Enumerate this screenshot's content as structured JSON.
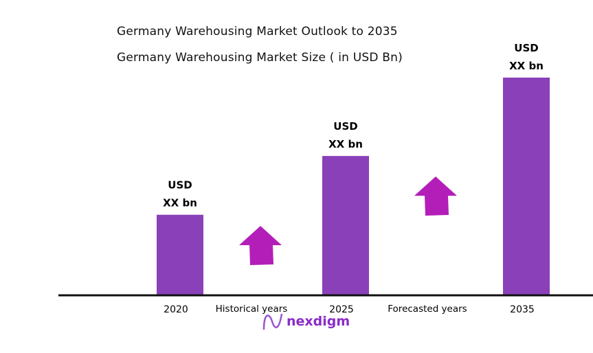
{
  "chart_data": {
    "type": "bar",
    "title": "Germany Warehousing  Market Outlook to 2035",
    "subtitle": "Germany Warehousing Market Size  ( in USD Bn)",
    "categories": [
      "2020",
      "2025",
      "2035"
    ],
    "values_relative": [
      0.37,
      0.64,
      1.0
    ],
    "data_labels": [
      [
        "USD",
        "XX bn"
      ],
      [
        "USD",
        "XX bn"
      ],
      [
        "USD",
        "XX bn"
      ]
    ],
    "period_labels": [
      "Historical years",
      "Forecasted years"
    ],
    "bar_color": "#8940B8",
    "arrow_color": "#B41EB8",
    "grid": false,
    "legend": "none"
  },
  "logo": {
    "text": "nexdigm",
    "color": "#8A2BC8"
  }
}
